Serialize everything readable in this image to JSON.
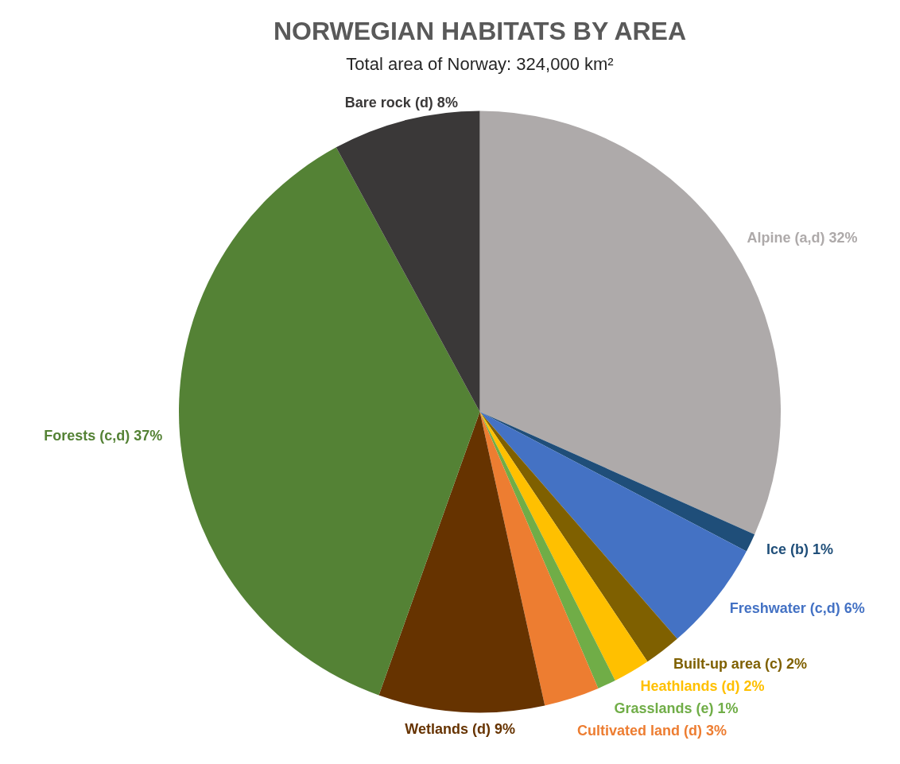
{
  "chart_data": {
    "type": "pie",
    "title": "NORWEGIAN HABITATS BY AREA",
    "subtitle": "Total area of Norway: 324,000 km²",
    "categories": [
      "Alpine (a,d)",
      "Ice (b)",
      "Freshwater (c,d)",
      "Built-up area (c)",
      "Heathlands (d)",
      "Grasslands (e)",
      "Cultivated land (d)",
      "Wetlands (d)",
      "Forests (c,d)",
      "Bare rock (d)"
    ],
    "values": [
      32,
      1,
      6,
      2,
      2,
      1,
      3,
      9,
      37,
      8
    ],
    "value_labels": [
      "32%",
      "1%",
      "6%",
      "2%",
      "2%",
      "1%",
      "3%",
      "9%",
      "37%",
      "8%"
    ],
    "colors": [
      "#aeaaaa",
      "#1f4e79",
      "#4472c4",
      "#7f6000",
      "#ffc000",
      "#70ad47",
      "#ed7d31",
      "#663300",
      "#548235",
      "#3a3838"
    ],
    "legend": false
  }
}
